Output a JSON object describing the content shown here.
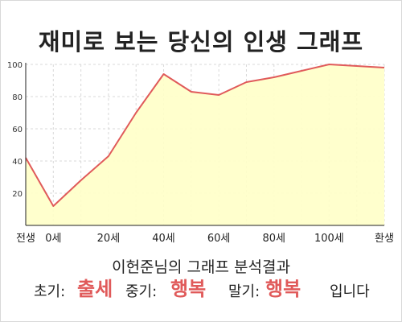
{
  "chart_data": {
    "type": "area",
    "title": "재미로 보는 당신의 인생 그래프",
    "x": [
      -10,
      0,
      10,
      20,
      30,
      40,
      50,
      60,
      70,
      80,
      90,
      100,
      110,
      120
    ],
    "x_tick_values": [
      -10,
      0,
      20,
      40,
      60,
      80,
      100,
      120
    ],
    "x_tick_labels": [
      "전생",
      "0세",
      "20세",
      "40세",
      "60세",
      "80세",
      "100세",
      "환생"
    ],
    "values": [
      42,
      12,
      28,
      43,
      70,
      94,
      83,
      81,
      89,
      92,
      96,
      100,
      99,
      98
    ],
    "ylim": [
      0,
      100
    ],
    "y_ticks": [
      20,
      40,
      60,
      80,
      100
    ],
    "grid": true,
    "colors": {
      "line": "#e05a5a",
      "fill": "#ffffc8",
      "grid": "#d9d9d9"
    }
  },
  "analysis_title": "이헌준님의 그래프 분석결과",
  "summary": {
    "early_label": "초기:",
    "early_value": "출세",
    "middle_label": "중기:",
    "middle_value": "행복",
    "late_label": "말기:",
    "late_value": "행복",
    "suffix": "입니다"
  }
}
